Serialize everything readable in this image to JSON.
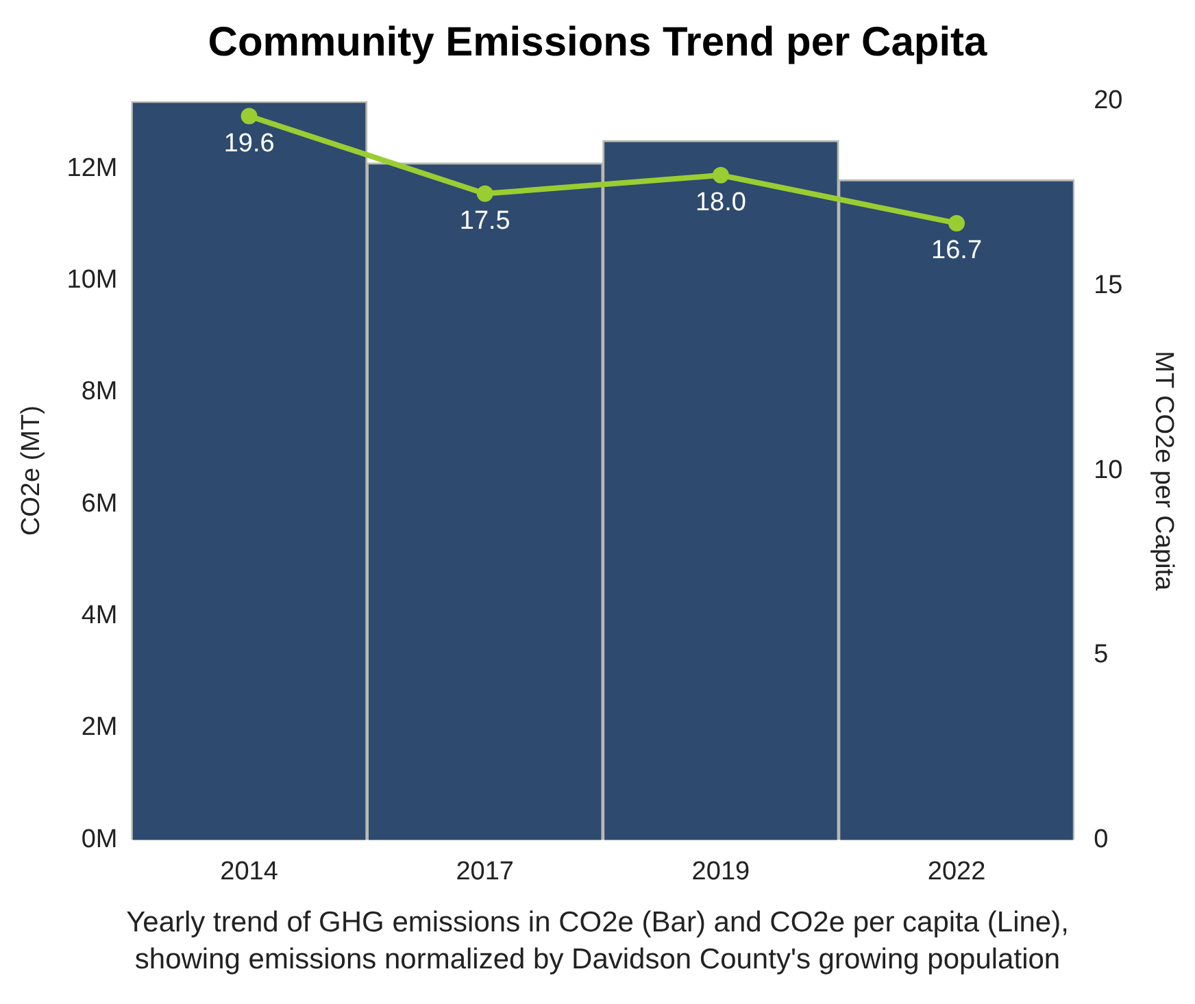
{
  "chart_data": {
    "type": "bar",
    "title": "Community Emissions Trend per Capita",
    "ylabel": "CO2e (MT)",
    "y2label": "MT CO2e per Capita",
    "annotations": [
      "Yearly trend of GHG emissions in CO2e (Bar) and CO2e per capita (Line), showing emissions normalized by Davidson County's growing population"
    ],
    "categories": [
      "2014",
      "2017",
      "2019",
      "2022"
    ],
    "series": [
      {
        "color": "#2e4a6e",
        "values": [
          13200000,
          12100000,
          12500000,
          11800000
        ]
      },
      {
        "type": "line",
        "axis": "y2",
        "color": "#9acd32",
        "values": [
          19.6,
          17.5,
          18.0,
          16.7
        ],
        "value_labels": [
          "19.6",
          "17.5",
          "18.0",
          "16.7"
        ]
      }
    ],
    "ylim": [
      0,
      13200000
    ],
    "yticks": [
      {
        "value": 0,
        "label": "0M"
      },
      {
        "value": 2000000,
        "label": "2M"
      },
      {
        "value": 4000000,
        "label": "4M"
      },
      {
        "value": 6000000,
        "label": "6M"
      },
      {
        "value": 8000000,
        "label": "8M"
      },
      {
        "value": 10000000,
        "label": "10M"
      },
      {
        "value": 12000000,
        "label": "12M"
      }
    ],
    "y2lim": [
      0,
      20
    ],
    "y2ticks": [
      0,
      5,
      10,
      15,
      20
    ],
    "grid": false,
    "legend": false,
    "marker": "circle"
  }
}
